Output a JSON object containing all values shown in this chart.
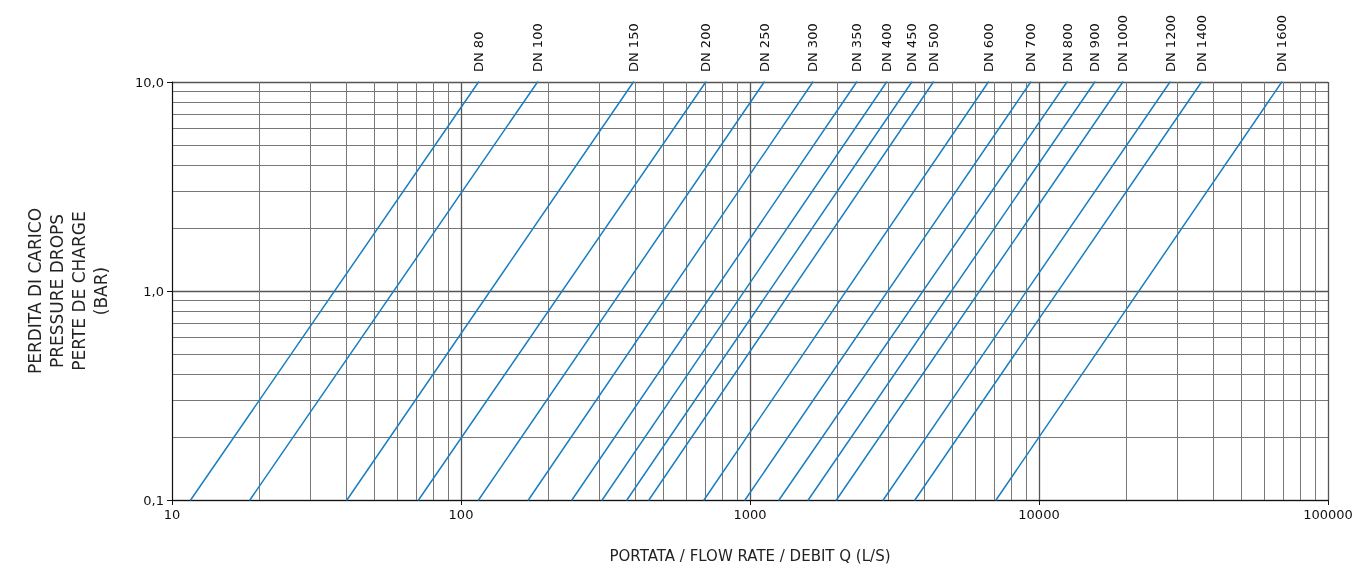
{
  "chart_data": {
    "type": "line",
    "xlabel": "PORTATA / FLOW RATE / DEBIT Q (L/S)",
    "ylabel": "PERDITA DI CARICO\nPRESSURE DROPS\nPERTE DE CHARGE\n(BAR)",
    "log": "xy",
    "grid": true,
    "legend": false,
    "marker": "none",
    "line_style": "solid",
    "xlim": [
      10,
      100000
    ],
    "xticks": [
      10,
      100,
      1000,
      10000,
      100000
    ],
    "ylim": [
      0.1,
      10
    ],
    "yticks": [
      {
        "value": 0.1,
        "label": "0,1"
      },
      {
        "value": 1,
        "label": "1,0"
      },
      {
        "value": 10,
        "label": "10,0"
      }
    ],
    "series": [
      {
        "name": "DN 80",
        "color": "#1a7fc1",
        "x": [
          11.6,
          115
        ],
        "values": [
          0.1,
          10
        ]
      },
      {
        "name": "DN 100",
        "color": "#1a7fc1",
        "x": [
          18.6,
          184
        ],
        "values": [
          0.1,
          10
        ]
      },
      {
        "name": "DN 150",
        "color": "#1a7fc1",
        "x": [
          40.3,
          395
        ],
        "values": [
          0.1,
          10
        ]
      },
      {
        "name": "DN 200",
        "color": "#1a7fc1",
        "x": [
          71.3,
          703
        ],
        "values": [
          0.1,
          10
        ]
      },
      {
        "name": "DN 250",
        "color": "#1a7fc1",
        "x": [
          115,
          1120
        ],
        "values": [
          0.1,
          10
        ]
      },
      {
        "name": "DN 300",
        "color": "#1a7fc1",
        "x": [
          171,
          1650
        ],
        "values": [
          0.1,
          10
        ]
      },
      {
        "name": "DN 350",
        "color": "#1a7fc1",
        "x": [
          242,
          2340
        ],
        "values": [
          0.1,
          10
        ]
      },
      {
        "name": "DN 400",
        "color": "#1a7fc1",
        "x": [
          308,
          2970
        ],
        "values": [
          0.1,
          10
        ]
      },
      {
        "name": "DN 450",
        "color": "#1a7fc1",
        "x": [
          375,
          3630
        ],
        "values": [
          0.1,
          10
        ]
      },
      {
        "name": "DN 500",
        "color": "#1a7fc1",
        "x": [
          447,
          4310
        ],
        "values": [
          0.1,
          10
        ]
      },
      {
        "name": "DN 600",
        "color": "#1a7fc1",
        "x": [
          693,
          6680
        ],
        "values": [
          0.1,
          10
        ]
      },
      {
        "name": "DN 700",
        "color": "#1a7fc1",
        "x": [
          961,
          9360
        ],
        "values": [
          0.1,
          10
        ]
      },
      {
        "name": "DN 800",
        "color": "#1a7fc1",
        "x": [
          1260,
          12500
        ],
        "values": [
          0.1,
          10
        ]
      },
      {
        "name": "DN 900",
        "color": "#1a7fc1",
        "x": [
          1590,
          15600
        ],
        "values": [
          0.1,
          10
        ]
      },
      {
        "name": "DN 1000",
        "color": "#1a7fc1",
        "x": [
          1990,
          19500
        ],
        "values": [
          0.1,
          10
        ]
      },
      {
        "name": "DN 1200",
        "color": "#1a7fc1",
        "x": [
          2890,
          28400
        ],
        "values": [
          0.1,
          10
        ]
      },
      {
        "name": "DN 1400",
        "color": "#1a7fc1",
        "x": [
          3720,
          36500
        ],
        "values": [
          0.1,
          10
        ]
      },
      {
        "name": "DN 1600",
        "color": "#1a7fc1",
        "x": [
          7100,
          69200
        ],
        "values": [
          0.1,
          10
        ]
      }
    ]
  }
}
